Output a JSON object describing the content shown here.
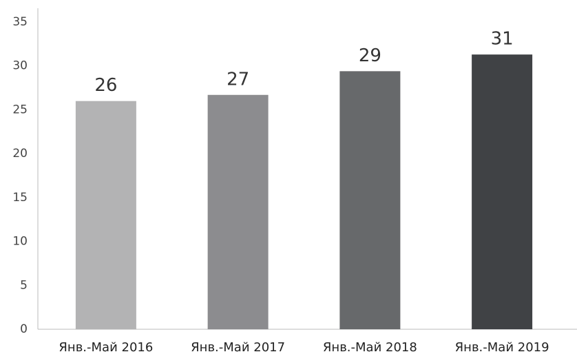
{
  "chart_data": {
    "type": "bar",
    "categories": [
      "Янв.-Май 2016",
      "Янв.-Май 2017",
      "Янв.-Май 2018",
      "Янв.-Май 2019"
    ],
    "values": [
      26,
      26.7,
      29.4,
      31.3
    ],
    "value_labels": [
      "26",
      "27",
      "29",
      "31"
    ],
    "colors": [
      "#b3b3b4",
      "#8c8c8f",
      "#67696b",
      "#404245"
    ],
    "ylim": [
      0,
      35
    ],
    "yticks": [
      0,
      5,
      10,
      15,
      20,
      25,
      30,
      35
    ],
    "grid": false
  }
}
